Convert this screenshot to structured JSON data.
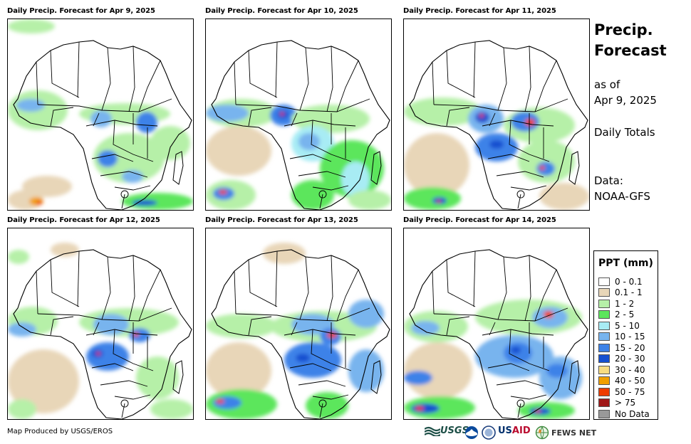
{
  "panels": [
    {
      "title": "Daily Precip. Forecast for Apr 9, 2025"
    },
    {
      "title": "Daily Precip. Forecast for Apr 10, 2025"
    },
    {
      "title": "Daily Precip. Forecast for Apr 11, 2025"
    },
    {
      "title": "Daily Precip. Forecast for Apr 12, 2025"
    },
    {
      "title": "Daily Precip. Forecast for Apr 13, 2025"
    },
    {
      "title": "Daily Precip. Forecast for Apr 14, 2025"
    }
  ],
  "sidebar": {
    "title_line1": "Precip.",
    "title_line2": "Forecast",
    "asof_line1": "as of",
    "asof_line2": "Apr 9, 2025",
    "totals": "Daily Totals",
    "data_line1": "Data:",
    "data_line2": "NOAA-GFS"
  },
  "legend": {
    "title": "PPT (mm)",
    "items": [
      {
        "label": "0 - 0.1",
        "color": "#ffffff"
      },
      {
        "label": "0.1 - 1",
        "color": "#e8d6b8"
      },
      {
        "label": "1 - 2",
        "color": "#b6f0a8"
      },
      {
        "label": "2 - 5",
        "color": "#5ce65c"
      },
      {
        "label": "5 - 10",
        "color": "#a8ecf4"
      },
      {
        "label": "10 - 15",
        "color": "#78b4ee"
      },
      {
        "label": "15 - 20",
        "color": "#3c82e8"
      },
      {
        "label": "20 - 30",
        "color": "#1550d0"
      },
      {
        "label": "30 - 40",
        "color": "#f8dc80"
      },
      {
        "label": "40 - 50",
        "color": "#f2a000"
      },
      {
        "label": "50 - 75",
        "color": "#ee3c00"
      },
      {
        "label": "> 75",
        "color": "#a01818"
      },
      {
        "label": "No Data",
        "color": "#999999"
      }
    ]
  },
  "footer": {
    "credit": "Map Produced by USGS/EROS",
    "usgs": "USGS",
    "usaid_us": "US",
    "usaid_aid": "AID",
    "fews": "FEWS NET"
  }
}
